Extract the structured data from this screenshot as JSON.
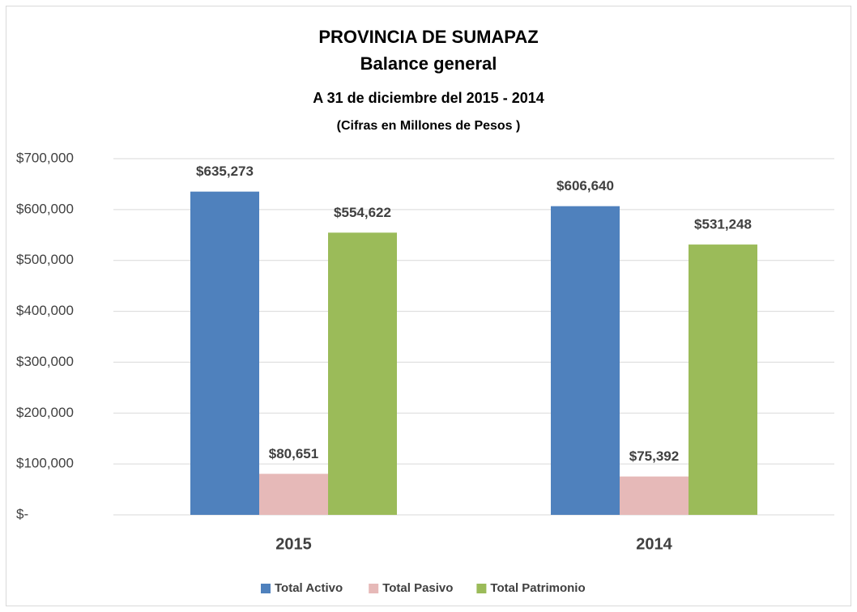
{
  "chart_data": {
    "type": "bar",
    "title": "PROVINCIA DE SUMAPAZ",
    "subtitles": [
      "Balance general",
      "A 31 de diciembre del 2015 - 2014",
      "(Cifras en Millones de Pesos )"
    ],
    "categories": [
      "2015",
      "2014"
    ],
    "series": [
      {
        "name": "Total Activo",
        "color": "#4f81bd",
        "values": [
          635273,
          606640
        ],
        "value_labels": [
          "$635,273",
          "$606,640"
        ]
      },
      {
        "name": "Total Pasivo",
        "color": "#e6b9b8",
        "values": [
          80651,
          75392
        ],
        "value_labels": [
          "$80,651",
          "$75,392"
        ]
      },
      {
        "name": "Total Patrimonio",
        "color": "#9bbb59",
        "values": [
          554622,
          531248
        ],
        "value_labels": [
          "$554,622",
          "$531,248"
        ]
      }
    ],
    "ylim": [
      0,
      700000
    ],
    "yticks": [
      {
        "value": 0,
        "label": "$-"
      },
      {
        "value": 100000,
        "label": "$100,000"
      },
      {
        "value": 200000,
        "label": "$200,000"
      },
      {
        "value": 300000,
        "label": "$300,000"
      },
      {
        "value": 400000,
        "label": "$400,000"
      },
      {
        "value": 500000,
        "label": "$500,000"
      },
      {
        "value": 600000,
        "label": "$600,000"
      },
      {
        "value": 700000,
        "label": "$700,000"
      }
    ],
    "grid": true,
    "legend": "bottom"
  }
}
